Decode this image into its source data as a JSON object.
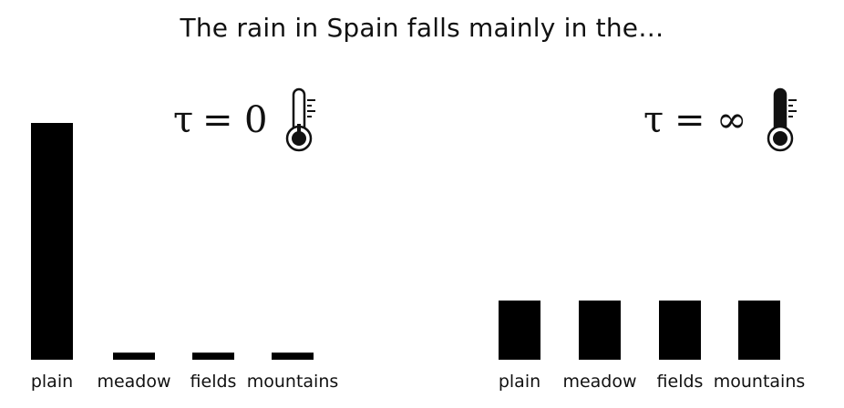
{
  "title": "The rain in Spain falls mainly in the…",
  "colors": {
    "bar": "#000000",
    "text": "#111111",
    "background": "#ffffff"
  },
  "icons": {
    "left": "thermometer-cold-icon",
    "right": "thermometer-hot-icon"
  },
  "chart_data": [
    {
      "type": "bar",
      "panel_label": "τ = 0",
      "temperature_symbol": "τ",
      "temperature_value": "0",
      "categories": [
        "plain",
        "meadow",
        "fields",
        "mountains"
      ],
      "values": [
        1.0,
        0.03,
        0.03,
        0.03
      ],
      "ylim": [
        0,
        1.0
      ],
      "grid": false,
      "legend": "none",
      "xlabel": "",
      "ylabel": ""
    },
    {
      "type": "bar",
      "panel_label": "τ = ∞",
      "temperature_symbol": "τ",
      "temperature_value": "∞",
      "categories": [
        "plain",
        "meadow",
        "fields",
        "mountains"
      ],
      "values": [
        0.25,
        0.25,
        0.25,
        0.25
      ],
      "ylim": [
        0,
        1.0
      ],
      "grid": false,
      "legend": "none",
      "xlabel": "",
      "ylabel": ""
    }
  ]
}
